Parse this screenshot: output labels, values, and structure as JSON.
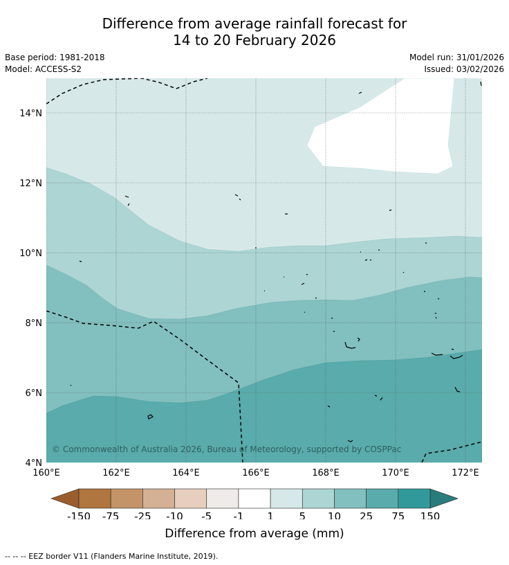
{
  "title": {
    "line1": "Difference from average rainfall forecast for",
    "line2": "14 to 20 February 2026"
  },
  "meta": {
    "base_period": "Base period: 1981-2018",
    "model": "Model: ACCESS-S2",
    "model_run": "Model run: 31/01/2026",
    "issued": "Issued: 03/02/2026"
  },
  "map": {
    "lon_range": [
      160,
      172.5
    ],
    "lat_range": [
      4,
      15
    ],
    "lon_ticks": [
      "160°E",
      "162°E",
      "164°E",
      "166°E",
      "168°E",
      "170°E",
      "172°E"
    ],
    "lat_ticks": [
      "4°N",
      "6°N",
      "8°N",
      "10°N",
      "12°N",
      "14°N"
    ],
    "copyright": "© Commonwealth of Australia 2026, Bureau of Meteorology, supported by COSPPac",
    "region_colors": {
      "band_1_5": "#d6e9e8",
      "band_5_10": "#acd5d4",
      "band_10_25": "#82bfbf",
      "band_25_75": "#5aabab",
      "white_patch": "#ffffff"
    }
  },
  "colorbar": {
    "ticks": [
      "-150",
      "-75",
      "-25",
      "-10",
      "-5",
      "-1",
      "1",
      "5",
      "10",
      "25",
      "75",
      "150"
    ],
    "colors": [
      "#b07640",
      "#c29468",
      "#d4b194",
      "#e6cfbe",
      "#eeebe8",
      "#ffffff",
      "#d6e9e8",
      "#acd5d4",
      "#82bfbf",
      "#5aabab",
      "#32999a"
    ],
    "low_extend_color": "#9b5d2e",
    "high_extend_color": "#2a7c7b",
    "label": "Difference from average (mm)"
  },
  "footnote": "--  --  -- EEZ border V11 (Flanders Marine Institute, 2019)."
}
